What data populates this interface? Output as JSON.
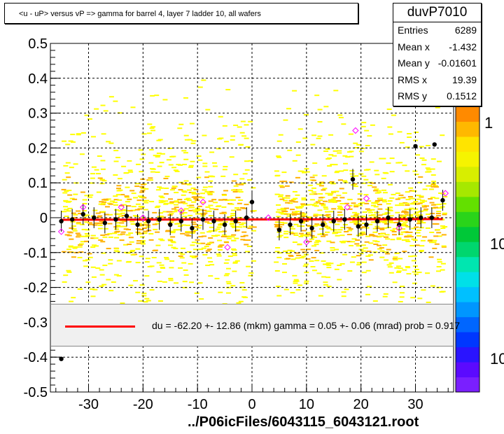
{
  "header": {
    "title": "<u - uP>       versus   vP =>  gamma for barrel 4, layer 7 ladder 10, all wafers"
  },
  "stats": {
    "name": "duvP7010",
    "rows": [
      {
        "label": "Entries",
        "value": "6289"
      },
      {
        "label": "Mean x",
        "value": "-1.432"
      },
      {
        "label": "Mean y",
        "value": "-0.01601"
      },
      {
        "label": "RMS x",
        "value": "19.39"
      },
      {
        "label": "RMS y",
        "value": "0.1512"
      }
    ]
  },
  "fit": {
    "text": "du =  -62.20 +- 12.86 (mkm) gamma =    0.05 +-  0.06 (mrad) prob = 0.917"
  },
  "footer": {
    "text": "../P06icFiles/6043115_6043121.root"
  },
  "colors": {
    "fit_line": "#ff0000",
    "profile_points": "#000000",
    "open_markers": "#ff00ff",
    "heat_low": "#ffff00",
    "heat_mid": "#ffb000",
    "grid": "#000000"
  },
  "colorbar": {
    "labels": [
      "1",
      "10",
      "10"
    ]
  },
  "chart_data": {
    "type": "heatmap",
    "title": "<u - uP>       versus   vP =>  gamma for barrel 4, layer 7 ladder 10, all wafers",
    "xlabel": "",
    "ylabel": "",
    "xlim": [
      -37,
      37
    ],
    "ylim": [
      -0.5,
      0.5
    ],
    "x_ticks": [
      -30,
      -20,
      -10,
      0,
      10,
      20,
      30
    ],
    "y_ticks": [
      -0.5,
      -0.4,
      -0.3,
      -0.2,
      -0.1,
      0,
      0.1,
      0.2,
      0.3,
      0.4,
      0.5
    ],
    "x_tick_labels": [
      "-30",
      "-20",
      "-10",
      "0",
      "10",
      "20",
      "30"
    ],
    "y_tick_labels": [
      "-0.5",
      "-0.4",
      "-0.3",
      "-0.2",
      "-0.1",
      "0",
      "0.1",
      "0.2",
      "0.3",
      "0.4",
      "0.5"
    ],
    "grid": true,
    "heat_regions": [
      {
        "x_range": [
          -35,
          0
        ],
        "y_range": [
          -0.3,
          0.5
        ],
        "density": "dense-center"
      },
      {
        "x_range": [
          4,
          35
        ],
        "y_range": [
          -0.3,
          0.5
        ],
        "density": "dense-center"
      }
    ],
    "profile_points": [
      {
        "x": -35,
        "y": -0.01
      },
      {
        "x": -33,
        "y": -0.005
      },
      {
        "x": -31,
        "y": 0.01
      },
      {
        "x": -29,
        "y": 0.0
      },
      {
        "x": -27,
        "y": -0.015
      },
      {
        "x": -25,
        "y": -0.005
      },
      {
        "x": -23,
        "y": 0.005
      },
      {
        "x": -21,
        "y": -0.02
      },
      {
        "x": -19,
        "y": -0.01
      },
      {
        "x": -17,
        "y": -0.005
      },
      {
        "x": -15,
        "y": -0.02
      },
      {
        "x": -13,
        "y": -0.01
      },
      {
        "x": -11,
        "y": -0.03
      },
      {
        "x": -9,
        "y": -0.005
      },
      {
        "x": -7,
        "y": -0.01
      },
      {
        "x": -5,
        "y": -0.02
      },
      {
        "x": -3,
        "y": -0.01
      },
      {
        "x": -1,
        "y": 0.0
      },
      {
        "x": 0,
        "y": 0.045
      },
      {
        "x": 5,
        "y": -0.035
      },
      {
        "x": 7,
        "y": -0.02
      },
      {
        "x": 9,
        "y": -0.01
      },
      {
        "x": 11,
        "y": -0.03
      },
      {
        "x": 13,
        "y": -0.02
      },
      {
        "x": 15,
        "y": -0.01
      },
      {
        "x": 17,
        "y": -0.005
      },
      {
        "x": 18.5,
        "y": 0.11
      },
      {
        "x": 19.5,
        "y": -0.025
      },
      {
        "x": 21,
        "y": -0.02
      },
      {
        "x": 23,
        "y": -0.01
      },
      {
        "x": 25,
        "y": 0.0
      },
      {
        "x": 27,
        "y": -0.02
      },
      {
        "x": 29,
        "y": -0.005
      },
      {
        "x": 31,
        "y": 0.0
      },
      {
        "x": 33,
        "y": 0.0
      },
      {
        "x": 35,
        "y": 0.05
      }
    ],
    "outlier_points": [
      {
        "x": -35,
        "y": -0.405
      },
      {
        "x": 30,
        "y": 0.205
      },
      {
        "x": 33.5,
        "y": 0.21
      }
    ],
    "open_markers": [
      {
        "x": -35,
        "y": -0.04
      },
      {
        "x": -31,
        "y": 0.03
      },
      {
        "x": -24,
        "y": 0.03
      },
      {
        "x": -20,
        "y": 0.0
      },
      {
        "x": -13,
        "y": 0.02
      },
      {
        "x": -9,
        "y": 0.045
      },
      {
        "x": -4.5,
        "y": -0.085
      },
      {
        "x": 3,
        "y": 0.0
      },
      {
        "x": 10,
        "y": -0.07
      },
      {
        "x": 17.5,
        "y": 0.03
      },
      {
        "x": 19,
        "y": 0.25
      },
      {
        "x": 21,
        "y": 0.055
      },
      {
        "x": 27,
        "y": -0.03
      },
      {
        "x": 35.5,
        "y": 0.07
      }
    ],
    "fit_line": {
      "x0": -35,
      "y0": -0.006,
      "x1": 35,
      "y1": -0.004
    }
  }
}
